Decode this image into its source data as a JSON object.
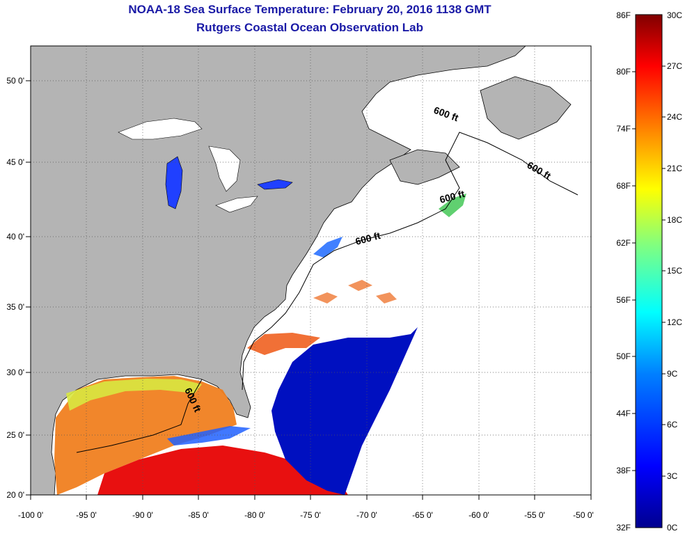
{
  "title": "NOAA-18 Sea Surface Temperature:  February 20, 2016 1138 GMT",
  "subtitle": "Rutgers Coastal Ocean Observation Lab",
  "map": {
    "lon_ticks": [
      "-100 0'",
      "-95 0'",
      "-90 0'",
      "-85 0'",
      "-80 0'",
      "-75 0'",
      "-70 0'",
      "-65 0'",
      "-60 0'",
      "-55 0'",
      "-50 0'"
    ],
    "lat_ticks": [
      "20 0'",
      "25 0'",
      "30 0'",
      "35 0'",
      "40 0'",
      "45 0'",
      "50 0'"
    ],
    "lon_range": [
      -100,
      -50
    ],
    "lat_range": [
      20,
      52
    ],
    "grid": true,
    "land_color": "#b4b4b4",
    "cloud_color": "#ffffff",
    "contour_labels": [
      "600 ft",
      "600 ft",
      "600 ft",
      "600 ft",
      "600 ft"
    ]
  },
  "colorbar": {
    "fahrenheit_labels": [
      "86F",
      "80F",
      "74F",
      "68F",
      "62F",
      "56F",
      "50F",
      "44F",
      "38F",
      "32F"
    ],
    "celsius_labels": [
      "30C",
      "27C",
      "24C",
      "21C",
      "18C",
      "15C",
      "12C",
      "9C",
      "6C",
      "3C",
      "0C"
    ],
    "colors": [
      "#00008f",
      "#0000ff",
      "#0080ff",
      "#00ffff",
      "#80ff80",
      "#ffff00",
      "#ff8000",
      "#ff0000",
      "#800000"
    ]
  }
}
